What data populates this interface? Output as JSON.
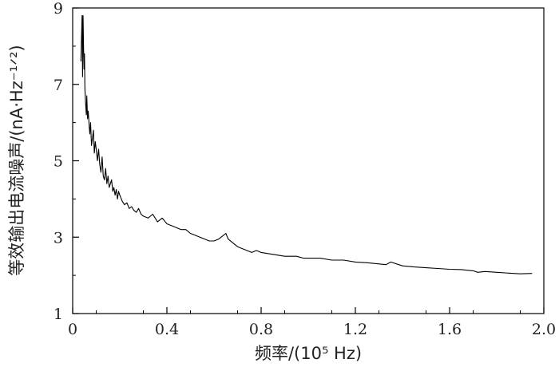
{
  "chart_data": {
    "type": "line",
    "xlabel": "频率/(10⁵ Hz)",
    "ylabel": "等效输出电流噪声/(nA·Hz⁻¹ᐟ²)",
    "xlim": [
      0,
      2.0
    ],
    "ylim": [
      1,
      9
    ],
    "xticks": [
      "0",
      "0.4",
      "0.8",
      "1.2",
      "1.6",
      "2.0"
    ],
    "yticks": [
      "1",
      "3",
      "5",
      "7",
      "9"
    ],
    "xtick_values": [
      0,
      0.4,
      0.8,
      1.2,
      1.6,
      2.0
    ],
    "ytick_values": [
      1,
      3,
      5,
      7,
      9
    ],
    "grid": false,
    "series": [
      {
        "color": "#000000",
        "x": [
          0.035,
          0.04,
          0.042,
          0.044,
          0.046,
          0.048,
          0.05,
          0.052,
          0.055,
          0.058,
          0.06,
          0.063,
          0.066,
          0.07,
          0.073,
          0.076,
          0.08,
          0.084,
          0.088,
          0.092,
          0.096,
          0.1,
          0.105,
          0.11,
          0.115,
          0.12,
          0.125,
          0.13,
          0.135,
          0.14,
          0.145,
          0.15,
          0.155,
          0.16,
          0.165,
          0.17,
          0.175,
          0.18,
          0.185,
          0.19,
          0.195,
          0.2,
          0.21,
          0.22,
          0.23,
          0.24,
          0.25,
          0.26,
          0.27,
          0.28,
          0.29,
          0.3,
          0.32,
          0.34,
          0.36,
          0.38,
          0.4,
          0.42,
          0.44,
          0.46,
          0.48,
          0.5,
          0.52,
          0.54,
          0.56,
          0.58,
          0.6,
          0.62,
          0.64,
          0.65,
          0.66,
          0.68,
          0.7,
          0.72,
          0.74,
          0.76,
          0.78,
          0.8,
          0.85,
          0.9,
          0.95,
          0.98,
          1.0,
          1.05,
          1.1,
          1.15,
          1.2,
          1.25,
          1.3,
          1.33,
          1.35,
          1.4,
          1.45,
          1.5,
          1.55,
          1.6,
          1.65,
          1.7,
          1.72,
          1.75,
          1.8,
          1.85,
          1.9,
          1.95
        ],
        "y": [
          7.6,
          8.8,
          7.2,
          8.8,
          8.0,
          7.4,
          7.8,
          6.9,
          6.5,
          6.2,
          6.7,
          6.1,
          6.3,
          5.9,
          5.7,
          6.0,
          5.4,
          5.6,
          5.8,
          5.2,
          5.5,
          5.3,
          5.0,
          5.3,
          4.9,
          4.7,
          5.1,
          4.6,
          4.5,
          4.8,
          4.4,
          4.6,
          4.3,
          4.4,
          4.5,
          4.2,
          4.3,
          4.1,
          4.25,
          4.0,
          4.2,
          4.1,
          3.95,
          3.85,
          3.9,
          3.75,
          3.8,
          3.7,
          3.65,
          3.75,
          3.6,
          3.55,
          3.5,
          3.6,
          3.4,
          3.5,
          3.35,
          3.3,
          3.25,
          3.2,
          3.2,
          3.1,
          3.05,
          3.0,
          2.95,
          2.9,
          2.9,
          2.95,
          3.05,
          3.1,
          2.95,
          2.85,
          2.75,
          2.7,
          2.65,
          2.6,
          2.65,
          2.6,
          2.55,
          2.5,
          2.5,
          2.45,
          2.45,
          2.45,
          2.4,
          2.4,
          2.35,
          2.33,
          2.3,
          2.28,
          2.35,
          2.25,
          2.22,
          2.2,
          2.18,
          2.16,
          2.15,
          2.12,
          2.08,
          2.1,
          2.08,
          2.06,
          2.04,
          2.05
        ]
      }
    ]
  }
}
